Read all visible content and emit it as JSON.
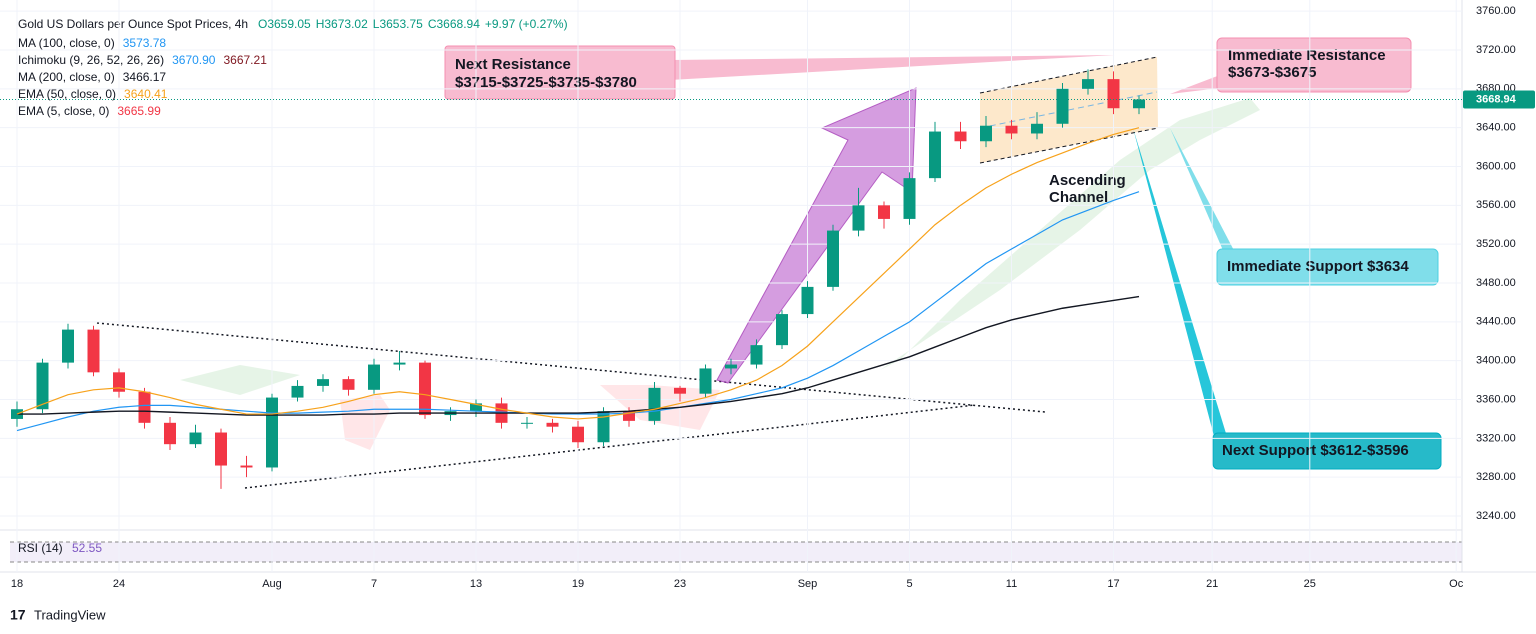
{
  "chart_data": {
    "type": "candlestick",
    "title": "Gold US Dollars per Ounce Spot Prices, 4h",
    "ohlc": [
      "O3659.05",
      "H3673.02",
      "L3653.75",
      "C3668.94",
      "+9.97 (+0.27%)"
    ],
    "indicators": [
      {
        "name": "MA (100, close, 0)",
        "values": [
          "3573.78"
        ],
        "colors": [
          "#2196f3"
        ]
      },
      {
        "name": "Ichimoku (9, 26, 52, 26, 26)",
        "values": [
          "3670.90",
          "3667.21"
        ],
        "colors": [
          "#2196f3",
          "#801922"
        ]
      },
      {
        "name": "MA (200, close, 0)",
        "values": [
          "3466.17"
        ],
        "colors": [
          "#131722"
        ]
      },
      {
        "name": "EMA (50, close, 0)",
        "values": [
          "3640.41"
        ],
        "colors": [
          "#f7a21b"
        ]
      },
      {
        "name": "EMA (5, close, 0)",
        "values": [
          "3665.99"
        ],
        "colors": [
          "#f23645"
        ]
      }
    ],
    "x": [
      "07-18",
      "07-21",
      "07-22",
      "07-23",
      "07-24",
      "07-25",
      "07-28",
      "07-29",
      "07-30",
      "07-31",
      "08-01",
      "08-04",
      "08-05",
      "08-06",
      "08-07",
      "08-08",
      "08-11",
      "08-12",
      "08-13",
      "08-14",
      "08-15",
      "08-18",
      "08-19",
      "08-20",
      "08-21",
      "08-22",
      "08-25",
      "08-26",
      "08-27",
      "08-28",
      "08-29",
      "09-01",
      "09-02",
      "09-03",
      "09-04",
      "09-05",
      "09-08",
      "09-09",
      "09-10",
      "09-11",
      "09-12",
      "09-15",
      "09-16",
      "09-17",
      "09-18"
    ],
    "open": [
      3340,
      3350,
      3398,
      3432,
      3388,
      3368,
      3336,
      3314,
      3326,
      3292,
      3290,
      3362,
      3374,
      3381,
      3370,
      3396,
      3398,
      3344,
      3348,
      3356,
      3336,
      3336,
      3332,
      3316,
      3348,
      3338,
      3372,
      3366,
      3392,
      3396,
      3416,
      3448,
      3476,
      3534,
      3560,
      3546,
      3588,
      3636,
      3626,
      3642,
      3634,
      3644,
      3680,
      3690,
      3660
    ],
    "high": [
      3358,
      3402,
      3438,
      3436,
      3392,
      3372,
      3342,
      3334,
      3330,
      3302,
      3366,
      3380,
      3386,
      3384,
      3402,
      3410,
      3400,
      3352,
      3360,
      3362,
      3342,
      3340,
      3338,
      3352,
      3352,
      3378,
      3374,
      3396,
      3402,
      3422,
      3452,
      3482,
      3540,
      3578,
      3564,
      3594,
      3646,
      3646,
      3652,
      3648,
      3656,
      3686,
      3700,
      3698,
      3673
    ],
    "low": [
      3332,
      3346,
      3392,
      3384,
      3362,
      3330,
      3308,
      3310,
      3268,
      3280,
      3286,
      3358,
      3368,
      3364,
      3366,
      3390,
      3340,
      3338,
      3342,
      3330,
      3330,
      3326,
      3310,
      3312,
      3332,
      3334,
      3358,
      3362,
      3386,
      3392,
      3412,
      3444,
      3472,
      3528,
      3536,
      3540,
      3584,
      3618,
      3620,
      3628,
      3628,
      3640,
      3674,
      3654,
      3654
    ],
    "close": [
      3350,
      3398,
      3432,
      3388,
      3368,
      3336,
      3314,
      3326,
      3292,
      3290,
      3362,
      3374,
      3381,
      3370,
      3396,
      3398,
      3344,
      3348,
      3356,
      3336,
      3336,
      3332,
      3316,
      3348,
      3338,
      3372,
      3366,
      3392,
      3396,
      3416,
      3448,
      3476,
      3534,
      3560,
      3546,
      3588,
      3636,
      3626,
      3642,
      3634,
      3644,
      3680,
      3690,
      3660,
      3669
    ],
    "up_color": "#089981",
    "down_color": "#f23645",
    "series": [
      {
        "name": "MA (100, close, 0)",
        "color": "#2196f3",
        "values": [
          3328,
          3335,
          3342,
          3348,
          3352,
          3354,
          3354,
          3352,
          3350,
          3348,
          3346,
          3346,
          3347,
          3348,
          3350,
          3350,
          3350,
          3349,
          3348,
          3347,
          3346,
          3345,
          3345,
          3345,
          3346,
          3348,
          3352,
          3356,
          3360,
          3366,
          3372,
          3382,
          3395,
          3410,
          3425,
          3440,
          3460,
          3480,
          3500,
          3515,
          3530,
          3545,
          3555,
          3565,
          3574
        ]
      },
      {
        "name": "MA (200, close, 0)",
        "color": "#131722",
        "values": [
          3345,
          3345,
          3346,
          3347,
          3348,
          3348,
          3347,
          3346,
          3345,
          3344,
          3344,
          3344,
          3344,
          3345,
          3345,
          3346,
          3346,
          3346,
          3346,
          3346,
          3346,
          3346,
          3346,
          3347,
          3348,
          3350,
          3352,
          3355,
          3358,
          3362,
          3366,
          3372,
          3380,
          3388,
          3396,
          3404,
          3414,
          3424,
          3434,
          3442,
          3448,
          3454,
          3458,
          3462,
          3466
        ]
      },
      {
        "name": "EMA (50, close, 0)",
        "color": "#f7a21b",
        "values": [
          3345,
          3355,
          3365,
          3370,
          3372,
          3368,
          3362,
          3355,
          3350,
          3345,
          3345,
          3348,
          3352,
          3358,
          3365,
          3368,
          3365,
          3360,
          3355,
          3350,
          3346,
          3342,
          3340,
          3342,
          3346,
          3350,
          3356,
          3362,
          3370,
          3380,
          3395,
          3415,
          3440,
          3465,
          3490,
          3515,
          3540,
          3560,
          3578,
          3592,
          3604,
          3614,
          3624,
          3633,
          3640
        ]
      }
    ],
    "ylim": [
      3222,
      3772
    ],
    "yticks": [
      {
        "value": 3240,
        "label": "3240.00"
      },
      {
        "value": 3280,
        "label": "3280.00"
      },
      {
        "value": 3320,
        "label": "3320.00"
      },
      {
        "value": 3360,
        "label": "3360.00"
      },
      {
        "value": 3400,
        "label": "3400.00"
      },
      {
        "value": 3440,
        "label": "3440.00"
      },
      {
        "value": 3480,
        "label": "3480.00"
      },
      {
        "value": 3520,
        "label": "3520.00"
      },
      {
        "value": 3560,
        "label": "3560.00"
      },
      {
        "value": 3600,
        "label": "3600.00"
      },
      {
        "value": 3640,
        "label": "3640.00"
      },
      {
        "value": 3680,
        "label": "3680.00"
      },
      {
        "value": 3720,
        "label": "3720.00"
      },
      {
        "value": 3760,
        "label": "3760.00"
      }
    ],
    "xticks": [
      {
        "value": "07-18",
        "label": "18"
      },
      {
        "value": "07-24",
        "label": "24"
      },
      {
        "value": "08-01",
        "label": "Aug"
      },
      {
        "value": "08-07",
        "label": "7"
      },
      {
        "value": "08-13",
        "label": "13"
      },
      {
        "value": "08-19",
        "label": "19"
      },
      {
        "value": "08-23",
        "label": "23"
      },
      {
        "value": "09-01",
        "label": "Sep"
      },
      {
        "value": "09-05",
        "label": "5"
      },
      {
        "value": "09-11",
        "label": "11"
      },
      {
        "value": "09-17",
        "label": "17"
      },
      {
        "value": "09-21",
        "label": "21"
      },
      {
        "value": "09-25",
        "label": "25"
      },
      {
        "value": "10-01",
        "label": "Oc"
      }
    ],
    "last_price": 3668.94,
    "rsi": {
      "name": "RSI (14)",
      "value": "52.55"
    },
    "annotations": {
      "next_resistance": [
        "Next Resistance",
        "$3715-$3725-$3735-$3780"
      ],
      "immediate_resistance": [
        "Immediate Resistance",
        "$3673-$3675"
      ],
      "immediate_support": "Immediate Support $3634",
      "next_support": "Next Support $3612-$3596",
      "channel": [
        "Ascending",
        "Channel"
      ]
    },
    "brand": "TradingView"
  }
}
